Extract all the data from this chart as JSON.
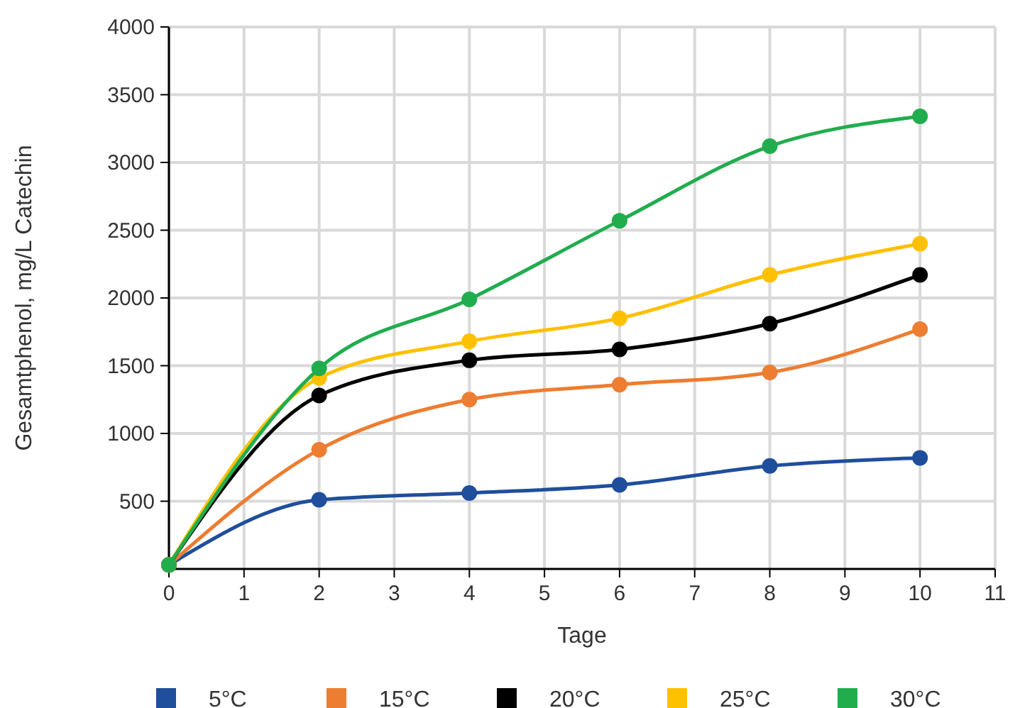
{
  "chart_data": {
    "type": "line",
    "xlabel": "Tage",
    "ylabel": "Gesamtphenol, mg/L Catechin",
    "x": [
      0,
      2,
      4,
      6,
      8,
      10
    ],
    "xlim": [
      0,
      11
    ],
    "xticks": [
      0,
      1,
      2,
      3,
      4,
      5,
      6,
      7,
      8,
      9,
      10,
      11
    ],
    "ylim": [
      0,
      4000
    ],
    "yticks": [
      500,
      1000,
      1500,
      2000,
      2500,
      3000,
      3500,
      4000
    ],
    "grid": true,
    "legend": "bottom",
    "marker": "circle",
    "line_style": "solid",
    "series": [
      {
        "name": "5°C",
        "color": "#1f4e9c",
        "values": [
          30,
          510,
          560,
          620,
          760,
          820
        ]
      },
      {
        "name": "15°C",
        "color": "#ed7d31",
        "values": [
          30,
          880,
          1250,
          1360,
          1450,
          1770
        ]
      },
      {
        "name": "20°C",
        "color": "#000000",
        "values": [
          30,
          1280,
          1540,
          1620,
          1810,
          2170
        ]
      },
      {
        "name": "25°C",
        "color": "#ffc000",
        "values": [
          30,
          1410,
          1680,
          1850,
          2170,
          2400
        ]
      },
      {
        "name": "30°C",
        "color": "#21ad4e",
        "values": [
          30,
          1480,
          1990,
          2570,
          3120,
          3340
        ]
      }
    ]
  }
}
